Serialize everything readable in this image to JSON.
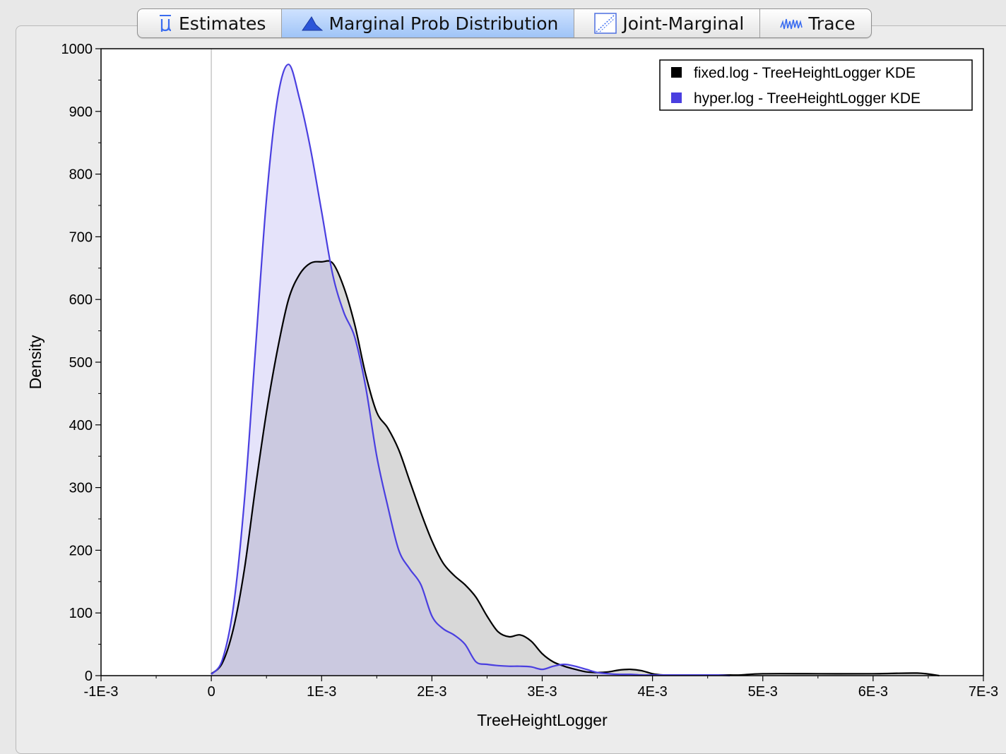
{
  "tabs": [
    {
      "label": "Estimates",
      "icon": "mu-icon",
      "active": false
    },
    {
      "label": "Marginal Prob Distribution",
      "icon": "distribution-icon",
      "active": true
    },
    {
      "label": "Joint-Marginal",
      "icon": "scatter-icon",
      "active": false
    },
    {
      "label": "Trace",
      "icon": "trace-icon",
      "active": false
    }
  ],
  "colors": {
    "fixed_line": "#000000",
    "fixed_fill": "#c8c8c8",
    "hyper_line": "#4a3fe0",
    "hyper_fill": "#b4b0f2"
  },
  "chart_data": {
    "type": "area",
    "xlabel": "TreeHeightLogger",
    "ylabel": "Density",
    "xlim": [
      -0.001,
      0.007
    ],
    "ylim": [
      0,
      1000
    ],
    "x_ticks": [
      -0.001,
      0,
      0.001,
      0.002,
      0.003,
      0.004,
      0.005,
      0.006,
      0.007
    ],
    "x_tick_labels": [
      "-1E-3",
      "0",
      "1E-3",
      "2E-3",
      "3E-3",
      "4E-3",
      "5E-3",
      "6E-3",
      "7E-3"
    ],
    "y_ticks": [
      0,
      100,
      200,
      300,
      400,
      500,
      600,
      700,
      800,
      900,
      1000
    ],
    "y_tick_labels": [
      "0",
      "100",
      "200",
      "300",
      "400",
      "500",
      "600",
      "700",
      "800",
      "900",
      "1000"
    ],
    "legend_position": "top-right",
    "series": [
      {
        "name": "fixed.log - TreeHeightLogger KDE",
        "x": [
          0,
          0.0001,
          0.0002,
          0.0003,
          0.0004,
          0.0005,
          0.0006,
          0.0007,
          0.0008,
          0.0009,
          0.001,
          0.0011,
          0.0012,
          0.0013,
          0.0014,
          0.0015,
          0.0016,
          0.0017,
          0.0018,
          0.0019,
          0.002,
          0.0021,
          0.0022,
          0.0023,
          0.0024,
          0.0025,
          0.0026,
          0.0027,
          0.0028,
          0.0029,
          0.003,
          0.0031,
          0.0032,
          0.0033,
          0.0034,
          0.0035,
          0.0036,
          0.0037,
          0.0038,
          0.0039,
          0.004,
          0.0041,
          0.0042,
          0.0043,
          0.0044,
          0.0045,
          0.0046,
          0.0047,
          0.0048,
          0.005,
          0.0055,
          0.006,
          0.0064,
          0.0066
        ],
        "y": [
          3,
          20,
          75,
          170,
          300,
          420,
          520,
          600,
          640,
          658,
          660,
          658,
          620,
          560,
          480,
          420,
          395,
          360,
          310,
          260,
          215,
          180,
          160,
          145,
          125,
          95,
          70,
          62,
          65,
          55,
          35,
          22,
          15,
          10,
          6,
          5,
          6,
          9,
          10,
          8,
          3,
          1,
          1,
          1,
          1,
          1,
          1,
          1,
          1,
          3,
          3,
          3,
          4,
          0
        ]
      },
      {
        "name": "hyper.log - TreeHeightLogger KDE",
        "x": [
          0,
          0.0001,
          0.0002,
          0.0003,
          0.0004,
          0.0005,
          0.0006,
          0.0007,
          0.0008,
          0.0009,
          0.001,
          0.0011,
          0.0012,
          0.0013,
          0.0014,
          0.0015,
          0.0016,
          0.0017,
          0.0018,
          0.0019,
          0.002,
          0.0021,
          0.0022,
          0.0023,
          0.0024,
          0.0025,
          0.0026,
          0.0027,
          0.0028,
          0.0029,
          0.003,
          0.0031,
          0.0032,
          0.0033,
          0.0034,
          0.0035,
          0.0036,
          0.0037,
          0.0038,
          0.0039,
          0.004,
          0.0041,
          0.0042,
          0.0043,
          0.0044,
          0.0045,
          0.0046,
          0.0047
        ],
        "y": [
          2,
          25,
          110,
          280,
          520,
          760,
          920,
          975,
          920,
          840,
          740,
          640,
          580,
          540,
          460,
          350,
          270,
          200,
          170,
          145,
          95,
          75,
          65,
          50,
          22,
          18,
          16,
          15,
          15,
          14,
          10,
          15,
          18,
          15,
          10,
          5,
          3,
          2,
          2,
          1,
          1,
          1,
          1,
          1,
          1,
          1,
          1,
          0
        ]
      }
    ]
  }
}
